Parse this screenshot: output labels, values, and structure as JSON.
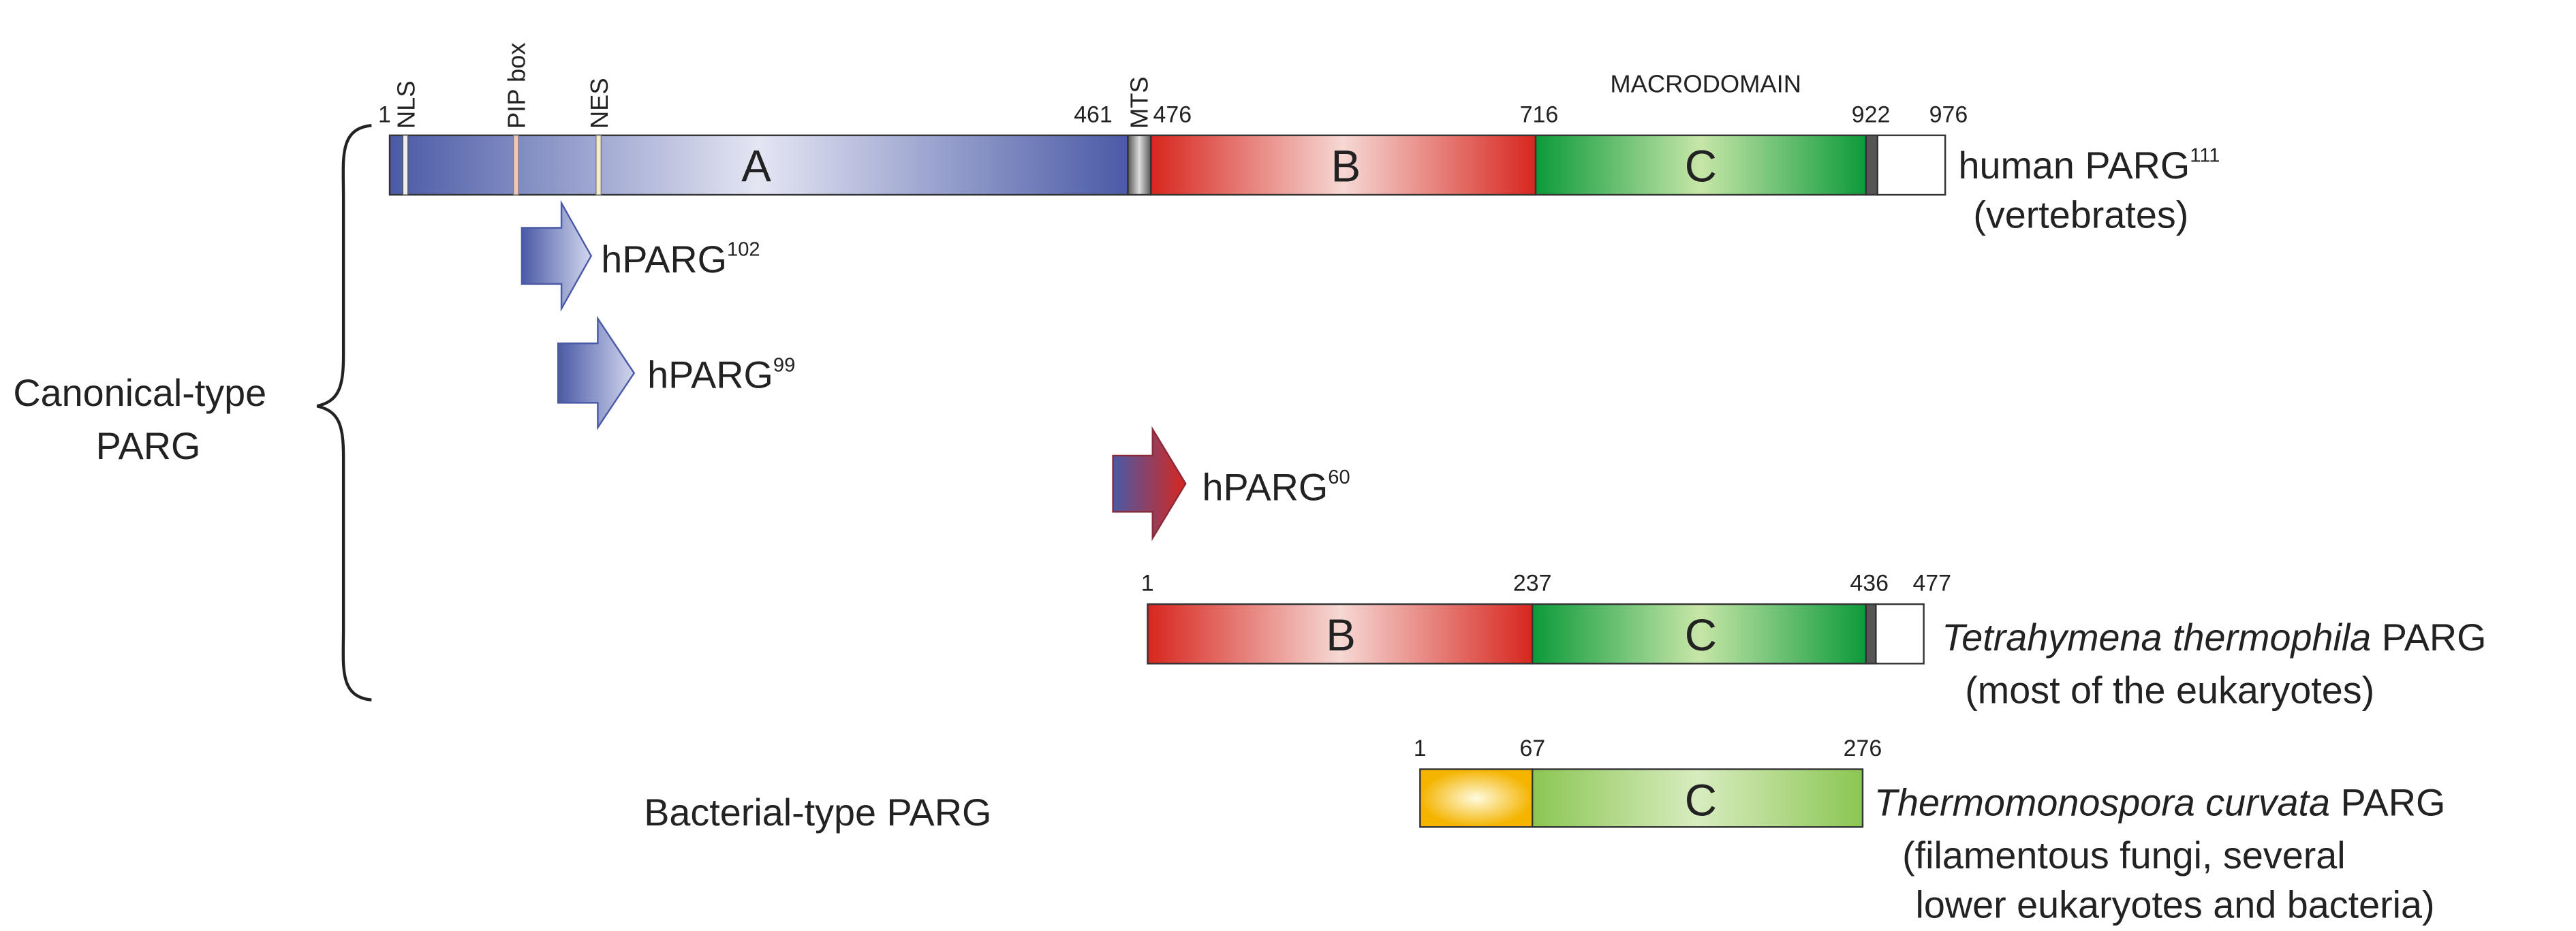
{
  "canonical_group": {
    "lines": [
      "Canonical-type",
      "PARG"
    ]
  },
  "bacterial_group": {
    "label": "Bacterial-type PARG"
  },
  "human": {
    "features": [
      "NLS",
      "PIP box",
      "NES",
      "MTS"
    ],
    "region_label": "MACRODOMAIN",
    "positions": [
      1,
      461,
      476,
      716,
      922,
      976
    ],
    "domains": [
      "A",
      "B",
      "C"
    ],
    "name": "human PARG",
    "sup": "111",
    "note": "(vertebrates)"
  },
  "isoforms": [
    {
      "name": "hPARG",
      "sup": "102"
    },
    {
      "name": "hPARG",
      "sup": "99"
    },
    {
      "name": "hPARG",
      "sup": "60"
    }
  ],
  "tetrahymena": {
    "positions": [
      1,
      237,
      436,
      477
    ],
    "domains": [
      "B",
      "C"
    ],
    "species": "Tetrahymena thermophila",
    "suffix": " PARG",
    "note": "(most of the eukaryotes)"
  },
  "thermomonospora": {
    "positions": [
      1,
      67,
      276
    ],
    "domains": [
      "C"
    ],
    "species": "Thermomonospora curvata",
    "suffix": " PARG",
    "notes": [
      "(filamentous fungi, several",
      "lower eukaryotes and bacteria)"
    ]
  }
}
